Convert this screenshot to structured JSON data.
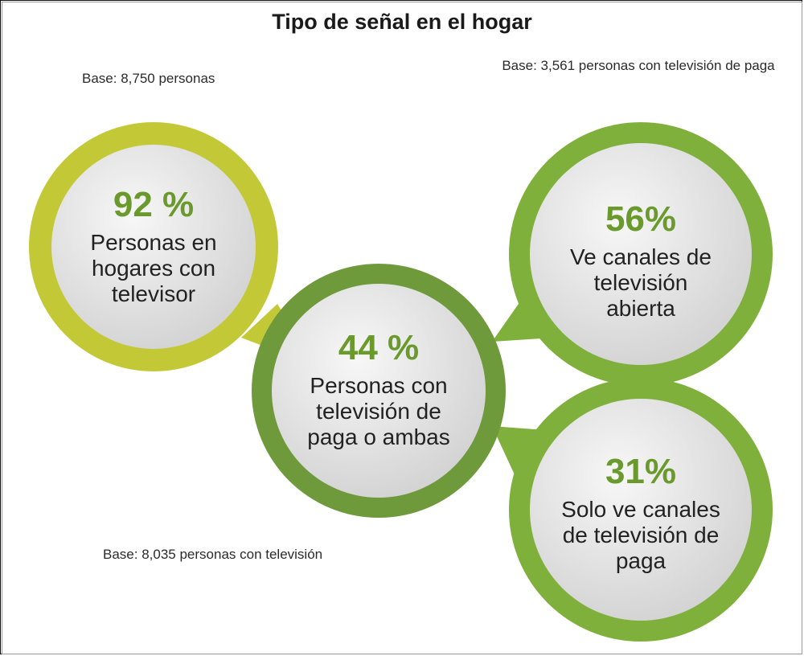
{
  "title": "Tipo de señal en el hogar",
  "bases": {
    "top_left": "Base: 8,750 personas",
    "top_right": "Base: 3,561 personas con televisión de paga",
    "bottom_left": "Base: 8,035 personas con televisión"
  },
  "colors": {
    "bubble1_ring": "#c3c936",
    "bubble2_ring": "#6f9a3b",
    "bubble3_ring": "#80b03c",
    "bubble4_ring": "#80b03c",
    "percent_text": "#6a9a2c",
    "inner_fill": "#dcdcdc"
  },
  "bubbles": [
    {
      "percent": "92 %",
      "label": "Personas en hogares con televisor"
    },
    {
      "percent": "44 %",
      "label": "Personas con televisión de paga o ambas"
    },
    {
      "percent": "56%",
      "label": "Ve canales de televisión abierta"
    },
    {
      "percent": "31%",
      "label": "Solo ve canales de televisión de paga"
    }
  ]
}
